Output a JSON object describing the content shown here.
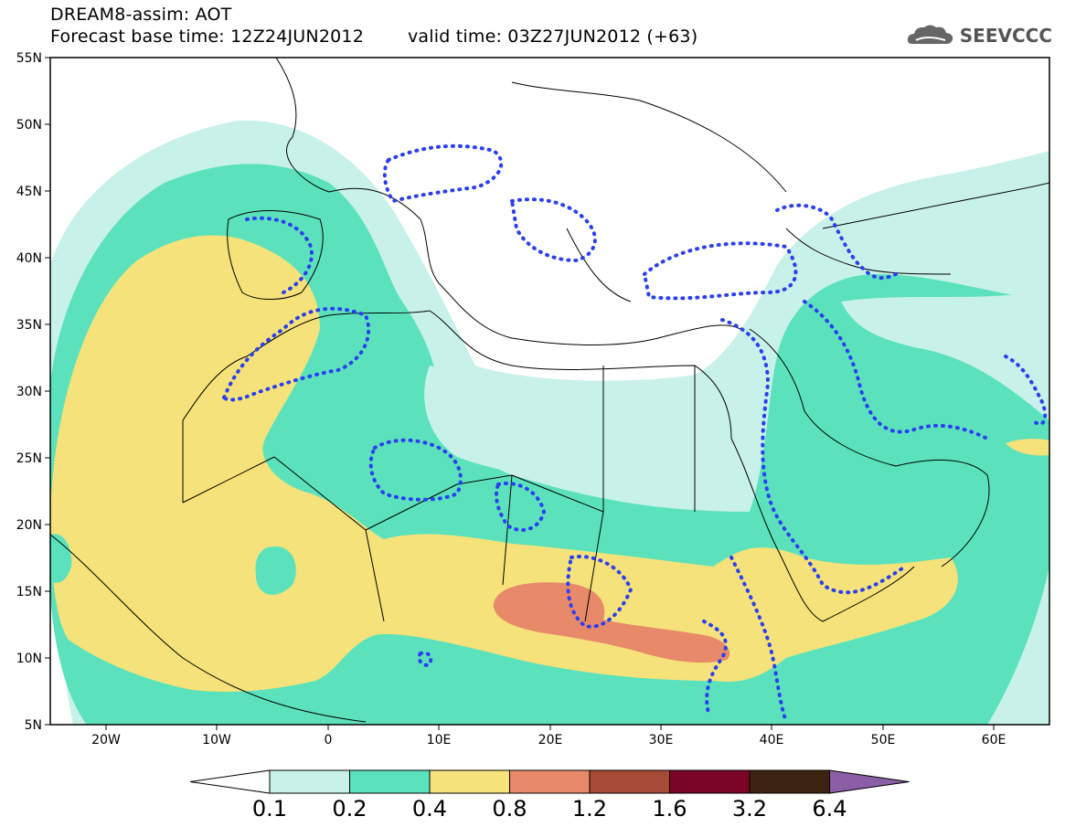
{
  "header": {
    "title_line1": "DREAM8-assim: AOT",
    "base_time": "Forecast base time: 12Z24JUN2012",
    "valid_time": "valid time: 03Z27JUN2012 (+63)",
    "logo_text": "SEEVCCC"
  },
  "axes": {
    "lat_ticks": [
      "55N",
      "50N",
      "45N",
      "40N",
      "35N",
      "30N",
      "25N",
      "20N",
      "15N",
      "10N",
      "5N"
    ],
    "lon_ticks": [
      "20W",
      "10W",
      "0",
      "10E",
      "20E",
      "30E",
      "40E",
      "50E",
      "60E"
    ]
  },
  "colorbar": {
    "levels": [
      "0.1",
      "0.2",
      "0.4",
      "0.8",
      "1.2",
      "1.6",
      "3.2",
      "6.4"
    ],
    "colors": [
      "#ffffff",
      "#c8f1ea",
      "#5be2bc",
      "#f5e27a",
      "#e8896a",
      "#a84a38",
      "#7a0526",
      "#3d2410",
      "#8a5fa8"
    ]
  },
  "icons": [
    "cloud-logo-icon"
  ]
}
